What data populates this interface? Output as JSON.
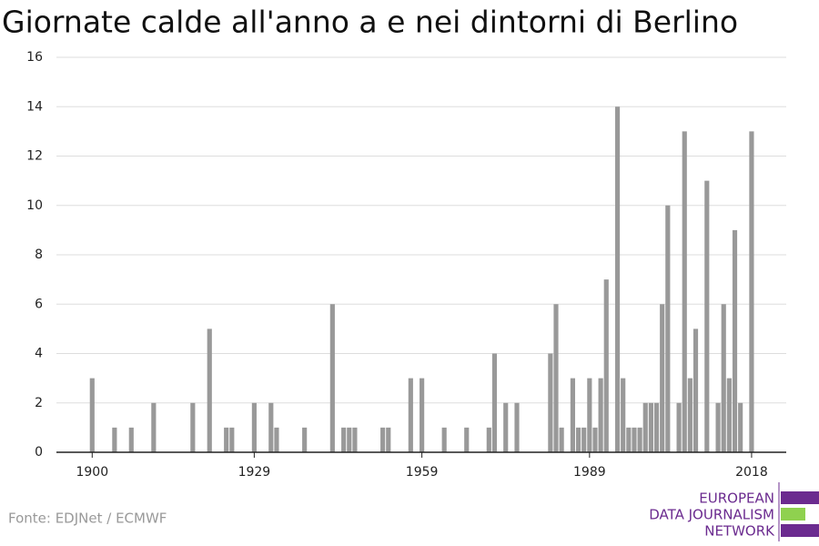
{
  "chart_data": {
    "type": "bar",
    "title": "Giornate calde all'anno a e nei dintorni di Berlino",
    "x": [
      1900,
      1901,
      1902,
      1903,
      1904,
      1905,
      1906,
      1907,
      1908,
      1909,
      1910,
      1911,
      1912,
      1913,
      1914,
      1915,
      1916,
      1917,
      1918,
      1919,
      1920,
      1921,
      1922,
      1923,
      1924,
      1925,
      1926,
      1927,
      1928,
      1929,
      1930,
      1931,
      1932,
      1933,
      1934,
      1935,
      1936,
      1937,
      1938,
      1939,
      1940,
      1941,
      1942,
      1943,
      1944,
      1945,
      1946,
      1947,
      1948,
      1949,
      1950,
      1951,
      1952,
      1953,
      1954,
      1955,
      1956,
      1957,
      1958,
      1959,
      1960,
      1961,
      1962,
      1963,
      1964,
      1965,
      1966,
      1967,
      1968,
      1969,
      1970,
      1971,
      1972,
      1973,
      1974,
      1975,
      1976,
      1977,
      1978,
      1979,
      1980,
      1981,
      1982,
      1983,
      1984,
      1985,
      1986,
      1987,
      1988,
      1989,
      1990,
      1991,
      1992,
      1993,
      1994,
      1995,
      1996,
      1997,
      1998,
      1999,
      2000,
      2001,
      2002,
      2003,
      2004,
      2005,
      2006,
      2007,
      2008,
      2009,
      2010,
      2011,
      2012,
      2013,
      2014,
      2015,
      2016,
      2017,
      2018
    ],
    "values": [
      3,
      0,
      0,
      0,
      1,
      0,
      0,
      1,
      0,
      0,
      0,
      2,
      0,
      0,
      0,
      0,
      0,
      0,
      2,
      0,
      0,
      5,
      0,
      0,
      1,
      1,
      0,
      0,
      0,
      2,
      0,
      0,
      2,
      1,
      0,
      0,
      0,
      0,
      1,
      0,
      0,
      0,
      0,
      6,
      0,
      1,
      1,
      1,
      0,
      0,
      0,
      0,
      1,
      1,
      0,
      0,
      0,
      3,
      0,
      3,
      0,
      0,
      0,
      1,
      0,
      0,
      0,
      1,
      0,
      0,
      0,
      1,
      4,
      0,
      2,
      0,
      2,
      0,
      0,
      0,
      0,
      0,
      4,
      6,
      1,
      0,
      3,
      1,
      1,
      3,
      1,
      3,
      7,
      0,
      14,
      3,
      1,
      1,
      1,
      2,
      2,
      2,
      6,
      10,
      0,
      2,
      13,
      3,
      5,
      0,
      11,
      0,
      2,
      6,
      3,
      9,
      2,
      0,
      13
    ],
    "color": "#999999",
    "xlim": [
      1893.6,
      2024.2
    ],
    "xticks": [
      1900,
      1929,
      1959,
      1989,
      2018
    ],
    "ylim": [
      0,
      16
    ],
    "yticks": [
      0,
      2,
      4,
      6,
      8,
      10,
      12,
      14,
      16
    ],
    "grid": true
  },
  "source": "Fonte: EDJNet / ECMWF",
  "logo": [
    "EUROPEAN",
    "DATA JOURNALISM",
    "NETWORK"
  ]
}
